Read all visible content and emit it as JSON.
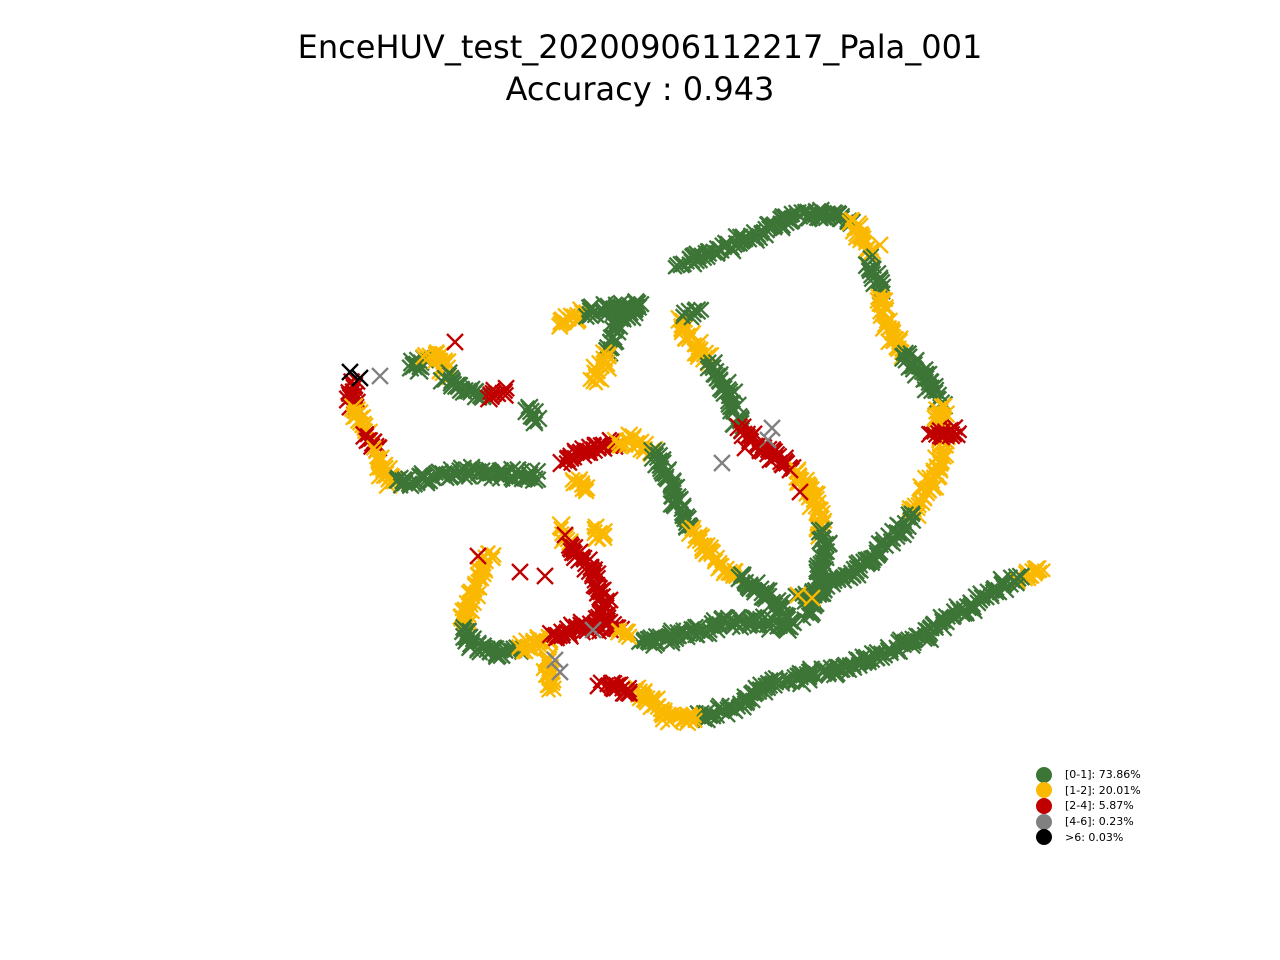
{
  "chart_data": {
    "type": "scatter",
    "title_line1": "EnceHUV_test_20200906112217_Pala_001",
    "title_line2": "Accuracy : 0.943",
    "axes_visible": false,
    "grid": false,
    "marker": "x",
    "legend_position": "bottom-right",
    "legend": [
      {
        "label": "[0-1]: 73.86%",
        "color": "#3c7536"
      },
      {
        "label": "[1-2]: 20.01%",
        "color": "#fbb800"
      },
      {
        "label": "[2-4]: 5.87%",
        "color": "#c00000"
      },
      {
        "label": "[4-6]: 0.23%",
        "color": "#808080"
      },
      {
        "label": ">6: 0.03%",
        "color": "#000000"
      }
    ],
    "series": [
      {
        "class": "[0-1]",
        "color": "#3c7536",
        "percent": 73.86
      },
      {
        "class": "[1-2]",
        "color": "#fbb800",
        "percent": 20.01
      },
      {
        "class": "[2-4]",
        "color": "#c00000",
        "percent": 5.87
      },
      {
        "class": "[4-6]",
        "color": "#808080",
        "percent": 0.23
      },
      {
        "class": ">6",
        "color": "#000000",
        "percent": 0.03
      }
    ]
  }
}
